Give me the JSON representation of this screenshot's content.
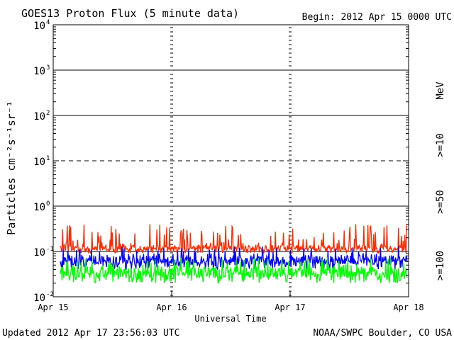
{
  "header": {
    "title": "GOES13 Proton Flux (5 minute data)",
    "begin": "Begin: 2012 Apr 15 0000 UTC"
  },
  "footer": {
    "updated": "Updated 2012 Apr 17 23:56:03 UTC",
    "credit": "NOAA/SWPC Boulder, CO USA"
  },
  "chart_data": {
    "type": "line",
    "title": "GOES13 Proton Flux (5 minute data)",
    "xlabel": "Universal Time",
    "ylabel": "Particles cm⁻²s⁻¹sr⁻¹",
    "yscale": "log",
    "ylim": [
      0.01,
      10000
    ],
    "xlim": [
      "2012-04-15 00:00",
      "2012-04-18 00:00"
    ],
    "x_ticks": [
      "Apr 15",
      "Apr 16",
      "Apr 17",
      "Apr 18"
    ],
    "y_ticks": [
      {
        "base": "10",
        "exp": "-2",
        "value": 0.01
      },
      {
        "base": "10",
        "exp": "-1",
        "value": 0.1
      },
      {
        "base": "10",
        "exp": "0",
        "value": 1
      },
      {
        "base": "10",
        "exp": "1",
        "value": 10
      },
      {
        "base": "10",
        "exp": "2",
        "value": 100
      },
      {
        "base": "10",
        "exp": "3",
        "value": 1000
      },
      {
        "base": "10",
        "exp": "4",
        "value": 10000
      }
    ],
    "threshold_lines": [
      {
        "value": 10,
        "style": "dashed"
      }
    ],
    "units_label": "MeV",
    "series": [
      {
        "name": ">=10",
        "color": "#ff2a00",
        "min": 0.09,
        "typical": 0.12,
        "max": 0.4
      },
      {
        "name": ">=50",
        "color": "#0000ff",
        "min": 0.04,
        "typical": 0.065,
        "max": 0.13
      },
      {
        "name": ">=100",
        "color": "#00ff00",
        "min": 0.02,
        "typical": 0.035,
        "max": 0.075
      }
    ]
  }
}
